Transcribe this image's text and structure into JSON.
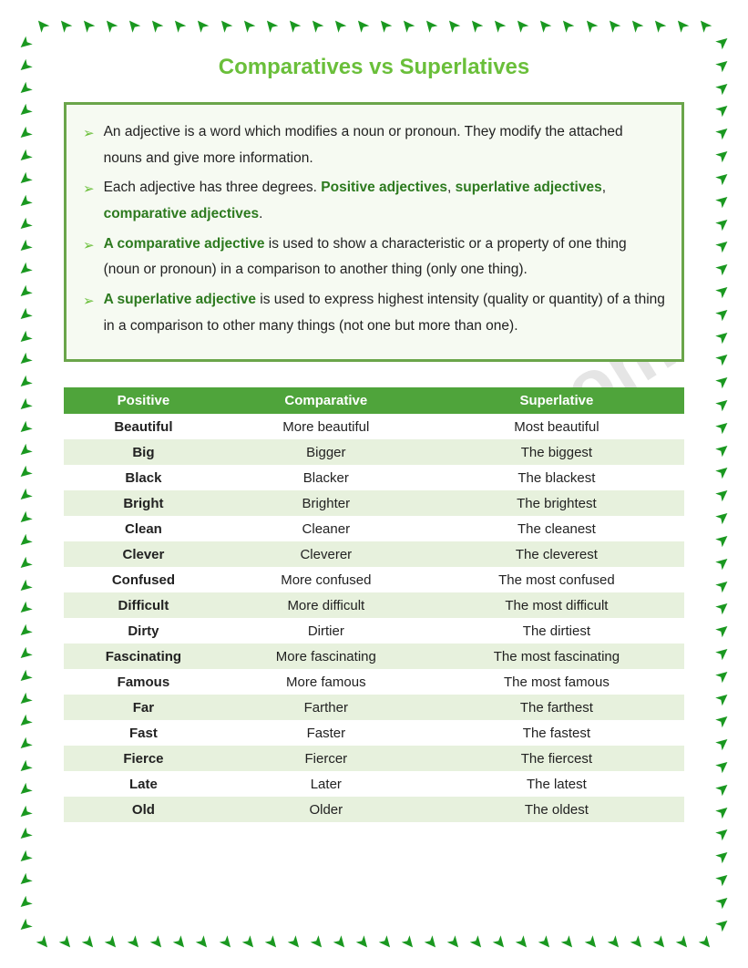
{
  "title": "Comparatives vs Superlatives",
  "watermark": "ESLprintables.com",
  "info": {
    "items": [
      {
        "segments": [
          {
            "text": "An adjective is a word which modifies a noun or pronoun. They modify the attached nouns and give more information.",
            "style": "plain"
          }
        ]
      },
      {
        "segments": [
          {
            "text": "Each adjective has three degrees. ",
            "style": "plain"
          },
          {
            "text": "Positive adjectives",
            "style": "strong-green"
          },
          {
            "text": ", ",
            "style": "plain"
          },
          {
            "text": "superlative adjectives",
            "style": "strong-green"
          },
          {
            "text": ", ",
            "style": "plain"
          },
          {
            "text": "comparative adjectives",
            "style": "strong-green"
          },
          {
            "text": ".",
            "style": "plain"
          }
        ]
      },
      {
        "segments": [
          {
            "text": "A comparative adjective",
            "style": "strong-green"
          },
          {
            "text": " is used to show a characteristic or a property of one thing (noun or pronoun) in a comparison to another thing (only one thing).",
            "style": "plain"
          }
        ]
      },
      {
        "segments": [
          {
            "text": "A superlative adjective",
            "style": "strong-green"
          },
          {
            "text": " is used to express highest intensity (quality or quantity) of a thing in a comparison to other many things (not one but more than one).",
            "style": "plain"
          }
        ]
      }
    ]
  },
  "table": {
    "headers": [
      "Positive",
      "Comparative",
      "Superlative"
    ],
    "header_bg": "#4fa43b",
    "header_fg": "#ffffff",
    "row_odd_bg": "#ffffff",
    "row_even_bg": "#e7f1dd",
    "rows": [
      [
        "Beautiful",
        "More beautiful",
        "Most beautiful"
      ],
      [
        "Big",
        "Bigger",
        "The biggest"
      ],
      [
        "Black",
        "Blacker",
        "The blackest"
      ],
      [
        "Bright",
        "Brighter",
        "The brightest"
      ],
      [
        "Clean",
        "Cleaner",
        "The cleanest"
      ],
      [
        "Clever",
        "Cleverer",
        "The cleverest"
      ],
      [
        "Confused",
        "More confused",
        "The most confused"
      ],
      [
        "Difficult",
        "More difficult",
        "The most difficult"
      ],
      [
        "Dirty",
        "Dirtier",
        "The dirtiest"
      ],
      [
        "Fascinating",
        "More fascinating",
        "The most fascinating"
      ],
      [
        "Famous",
        "More famous",
        "The most famous"
      ],
      [
        "Far",
        "Farther",
        "The farthest"
      ],
      [
        "Fast",
        "Faster",
        "The fastest"
      ],
      [
        "Fierce",
        "Fiercer",
        "The fiercest"
      ],
      [
        "Late",
        "Later",
        "The latest"
      ],
      [
        "Old",
        "Older",
        "The oldest"
      ]
    ]
  },
  "border": {
    "arrow_glyph": "➤",
    "arrow_color": "#1a9820",
    "count_h": 30,
    "count_v": 40
  }
}
